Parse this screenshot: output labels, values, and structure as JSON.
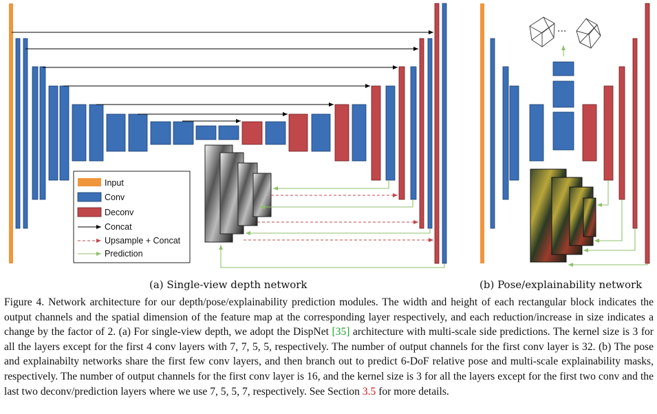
{
  "colors": {
    "input": "#f0963c",
    "conv": "#3b6fb6",
    "deconv": "#c0474a",
    "concat": "#000000",
    "upsample": "#c0474a",
    "prediction": "#8fc16b"
  },
  "legend": {
    "items": [
      {
        "label": "Input",
        "icon": "orange-swatch"
      },
      {
        "label": "Conv",
        "icon": "blue-swatch"
      },
      {
        "label": "Deconv",
        "icon": "red-swatch"
      },
      {
        "label": "Concat",
        "icon": "black-arrow"
      },
      {
        "label": "Upsample + Concat",
        "icon": "red-dashed-arrow"
      },
      {
        "label": "Prediction",
        "icon": "green-arrow"
      }
    ]
  },
  "subcaptions": {
    "a": "(a) Single-view depth network",
    "b": "(b) Pose/explainability network"
  },
  "caption": {
    "p1": "Figure 4. Network architecture for our depth/pose/explainability prediction modules. The width and height of each rectangular block indicates the output channels and the spatial dimension of the feature map at the corresponding layer respectively, and each reduction/increase in size indicates a change by the factor of 2. (a) For single-view depth, we adopt the DispNet ",
    "cite1": "[35]",
    "p2": " architecture with multi-scale side predictions. The kernel size is 3 for all the layers except for the first 4 conv layers with 7, 7, 5, 5, respectively. The number of output channels for the first conv layer is 32. (b) The pose and explainabilty networks share the first few conv layers, and then branch out to predict 6-DoF relative pose and multi-scale explainability masks, respectively. The number of output channels for the first conv layer is 16, and the kernel size is 3 for all the layers except for the first two conv and the last two deconv/prediction layers where we use 7, 5, 5, 7, respectively. See Section ",
    "cite2": "3.5",
    "p3": " for more details."
  }
}
